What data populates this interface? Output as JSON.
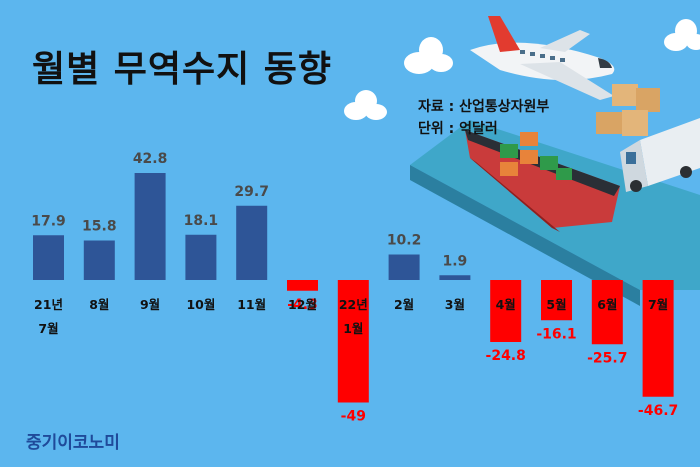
{
  "title": "월별 무역수지 동향",
  "source": "자료 : 산업통상자원부",
  "unit": "단위 : 억달러",
  "brand": "중기이코노미",
  "colors": {
    "background": "#5cb6ee",
    "positive": "#2e5597",
    "negative": "#ff0000"
  },
  "illustration": [
    "cloud-icon",
    "airplane-icon",
    "cargo-ship-icon",
    "boxes-icon",
    "truck-icon"
  ],
  "chart_data": {
    "type": "bar",
    "categories": [
      [
        "21년",
        "7월"
      ],
      [
        "8월"
      ],
      [
        "9월"
      ],
      [
        "10월"
      ],
      [
        "11월"
      ],
      [
        "12월"
      ],
      [
        "22년",
        "1월"
      ],
      [
        "2월"
      ],
      [
        "3월"
      ],
      [
        "4월"
      ],
      [
        "5월"
      ],
      [
        "6월"
      ],
      [
        "7월"
      ]
    ],
    "values": [
      17.9,
      15.8,
      42.8,
      18.1,
      29.7,
      -4.3,
      -49,
      10.2,
      1.9,
      -24.8,
      -16.1,
      -25.7,
      -46.7
    ],
    "value_labels": [
      "17.9",
      "15.8",
      "42.8",
      "18.1",
      "29.7",
      "-4.3",
      "-49",
      "10.2",
      "1.9",
      "-24.8",
      "-16.1",
      "-25.7",
      "-46.7"
    ],
    "ylim": [
      -49,
      42.8
    ],
    "grid": false,
    "legend": "none"
  }
}
